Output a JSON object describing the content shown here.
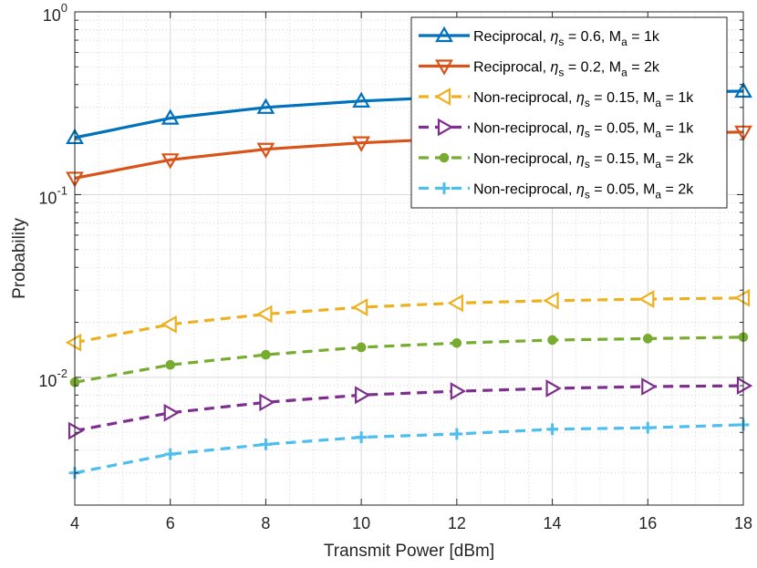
{
  "chart_data": {
    "type": "line",
    "xlabel": "Transmit Power [dBm]",
    "ylabel": "Probability",
    "xlim": [
      4,
      18
    ],
    "ylim": [
      0.002,
      1
    ],
    "yscale": "log",
    "grid": true,
    "minor_grid": true,
    "legend_position": "top-right",
    "x": [
      4,
      6,
      8,
      10,
      12,
      14,
      16,
      18
    ],
    "x_ticks": [
      "4",
      "6",
      "8",
      "10",
      "12",
      "14",
      "16",
      "18"
    ],
    "y_ticks": [
      {
        "value": 1,
        "base": "10",
        "exp": "0"
      },
      {
        "value": 0.1,
        "base": "10",
        "exp": "-1"
      },
      {
        "value": 0.01,
        "base": "10",
        "exp": "-2"
      }
    ],
    "series": [
      {
        "legend": {
          "pre": "Reciprocal, ",
          "eta": "s",
          "eta_val": " = 0.6, M",
          "m_sub": "a",
          "m_val": " = 1k"
        },
        "color": "#0072BD",
        "dash": "solid",
        "marker": "triangle-up",
        "values": [
          0.205,
          0.262,
          0.3,
          0.325,
          0.343,
          0.355,
          0.363,
          0.368
        ]
      },
      {
        "legend": {
          "pre": "Reciprocal, ",
          "eta": "s",
          "eta_val": " = 0.2, M",
          "m_sub": "a",
          "m_val": " = 2k"
        },
        "color": "#D95319",
        "dash": "solid",
        "marker": "triangle-down",
        "values": [
          0.123,
          0.155,
          0.177,
          0.192,
          0.203,
          0.211,
          0.216,
          0.22
        ]
      },
      {
        "legend": {
          "pre": "Non-reciprocal, ",
          "eta": "s",
          "eta_val": " = 0.15, M",
          "m_sub": "a",
          "m_val": " = 1k"
        },
        "color": "#EDB120",
        "dash": "dashed",
        "marker": "triangle-left",
        "values": [
          0.0155,
          0.0195,
          0.0222,
          0.0242,
          0.0255,
          0.0263,
          0.0268,
          0.0272
        ]
      },
      {
        "legend": {
          "pre": "Non-reciprocal, ",
          "eta": "s",
          "eta_val": " = 0.05, M",
          "m_sub": "a",
          "m_val": " = 1k"
        },
        "color": "#7E2F8E",
        "dash": "dashed",
        "marker": "triangle-right",
        "values": [
          0.0051,
          0.0064,
          0.0073,
          0.008,
          0.0084,
          0.0087,
          0.0089,
          0.009
        ]
      },
      {
        "legend": {
          "pre": "Non-reciprocal, ",
          "eta": "s",
          "eta_val": " = 0.15, M",
          "m_sub": "a",
          "m_val": " = 2k"
        },
        "color": "#77AC30",
        "dash": "dashed",
        "marker": "circle",
        "values": [
          0.0094,
          0.0117,
          0.0133,
          0.0146,
          0.0154,
          0.016,
          0.0163,
          0.0166
        ]
      },
      {
        "legend": {
          "pre": "Non-reciprocal, ",
          "eta": "s",
          "eta_val": " = 0.05, M",
          "m_sub": "a",
          "m_val": " = 2k"
        },
        "color": "#4DBEEE",
        "dash": "dashed",
        "marker": "plus",
        "values": [
          0.003,
          0.0038,
          0.0043,
          0.0047,
          0.0049,
          0.0052,
          0.0053,
          0.0055
        ]
      }
    ]
  }
}
